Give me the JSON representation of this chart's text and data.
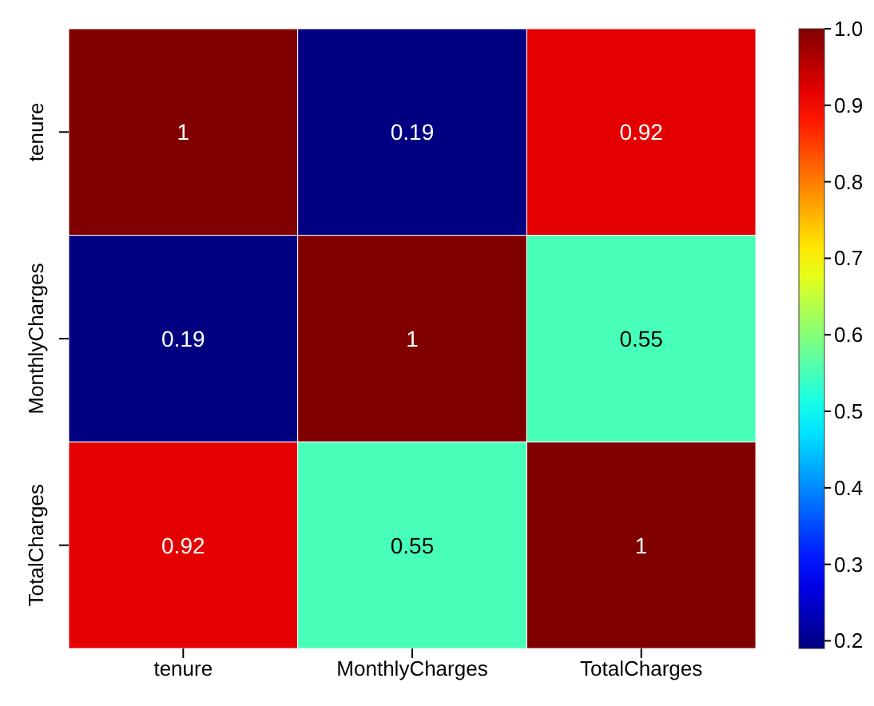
{
  "chart_data": {
    "type": "heatmap",
    "categories": [
      "tenure",
      "MonthlyCharges",
      "TotalCharges"
    ],
    "y_categories": [
      "tenure",
      "MonthlyCharges",
      "TotalCharges"
    ],
    "cells": [
      [
        1,
        0.19,
        0.92
      ],
      [
        0.19,
        1,
        0.55
      ],
      [
        0.92,
        0.55,
        1
      ]
    ],
    "data_labels": true,
    "clim": [
      0.19,
      1
    ],
    "cticks": [
      0.2,
      0.3,
      0.4,
      0.5,
      0.6,
      0.7,
      0.8,
      0.9,
      {
        "value": 1,
        "label": "1.0"
      }
    ]
  }
}
